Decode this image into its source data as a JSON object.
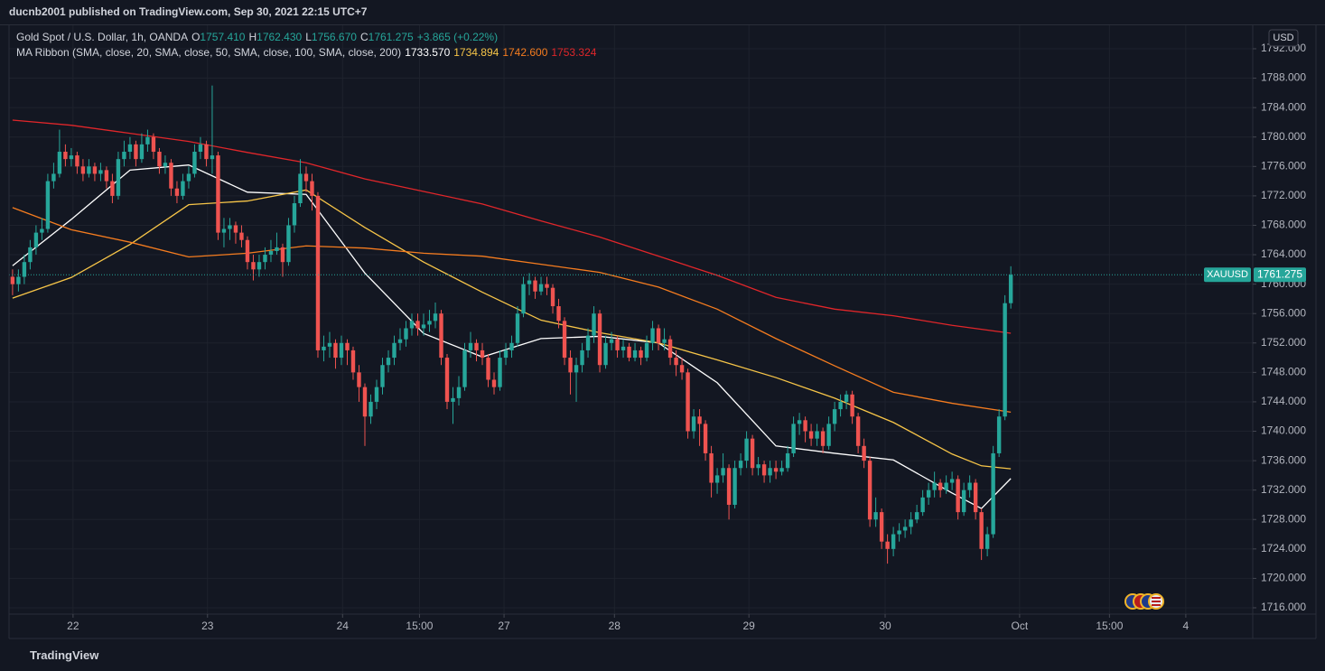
{
  "header": "ducnb2001 published on TradingView.com, Sep 30, 2021 22:15 UTC+7",
  "footer": "TradingView",
  "chart_data": {
    "type": "candlestick",
    "symbol_title": "Gold Spot / U.S. Dollar, 1h, OANDA",
    "ohlc_legend": [
      {
        "label": "O",
        "value": "1757.410"
      },
      {
        "label": "H",
        "value": "1762.430"
      },
      {
        "label": "L",
        "value": "1756.670"
      },
      {
        "label": "C",
        "value": "1761.275"
      }
    ],
    "change": "+3.865 (+0.22%)",
    "indicator_title": "MA Ribbon (SMA, close, 20, SMA, close, 50, SMA, close, 100, SMA, close, 200)",
    "currency": "USD",
    "price_tag": {
      "name": "XAUUSD",
      "value": 1761.275,
      "label": "1761.275"
    },
    "up_color": "#26a69a",
    "down_color": "#ef5350",
    "grid": true,
    "xlim": [
      -0.6,
      211.2
    ],
    "ylim": [
      1715.14,
      1795.19
    ],
    "xticks": [
      {
        "value": 10.3,
        "label": "22"
      },
      {
        "value": 33.2,
        "label": "23"
      },
      {
        "value": 56.2,
        "label": "24"
      },
      {
        "value": 69.3,
        "label": "15:00"
      },
      {
        "value": 83.7,
        "label": "27"
      },
      {
        "value": 102.5,
        "label": "28"
      },
      {
        "value": 125.4,
        "label": "29"
      },
      {
        "value": 148.6,
        "label": "30"
      },
      {
        "value": 171.5,
        "label": "Oct"
      },
      {
        "value": 186.8,
        "label": "15:00"
      },
      {
        "value": 199.8,
        "label": "4"
      }
    ],
    "yticks": [
      {
        "value": 1716,
        "label": "1716.000"
      },
      {
        "value": 1720,
        "label": "1720.000"
      },
      {
        "value": 1724,
        "label": "1724.000"
      },
      {
        "value": 1728,
        "label": "1728.000"
      },
      {
        "value": 1732,
        "label": "1732.000"
      },
      {
        "value": 1736,
        "label": "1736.000"
      },
      {
        "value": 1740,
        "label": "1740.000"
      },
      {
        "value": 1744,
        "label": "1744.000"
      },
      {
        "value": 1748,
        "label": "1748.000"
      },
      {
        "value": 1752,
        "label": "1752.000"
      },
      {
        "value": 1756,
        "label": "1756.000"
      },
      {
        "value": 1760,
        "label": "1760.000"
      },
      {
        "value": 1764,
        "label": "1764.000"
      },
      {
        "value": 1768,
        "label": "1768.000"
      },
      {
        "value": 1772,
        "label": "1772.000"
      },
      {
        "value": 1776,
        "label": "1776.000"
      },
      {
        "value": 1780,
        "label": "1780.000"
      },
      {
        "value": 1784,
        "label": "1784.000"
      },
      {
        "value": 1788,
        "label": "1788.000"
      },
      {
        "value": 1792,
        "label": "1792.000"
      }
    ],
    "candles": [
      [
        1761,
        1762,
        1758.5,
        1760
      ],
      [
        1760,
        1762,
        1759,
        1761
      ],
      [
        1761,
        1764,
        1760,
        1763
      ],
      [
        1763,
        1766,
        1762,
        1765
      ],
      [
        1765,
        1768,
        1764,
        1767
      ],
      [
        1767,
        1769,
        1766,
        1767.5
      ],
      [
        1767.5,
        1775,
        1767,
        1774
      ],
      [
        1774,
        1776.5,
        1773,
        1775
      ],
      [
        1775,
        1781,
        1774.5,
        1778
      ],
      [
        1778,
        1779,
        1776,
        1777
      ],
      [
        1777,
        1778.5,
        1776,
        1777.5
      ],
      [
        1777.5,
        1778,
        1775,
        1776
      ],
      [
        1776,
        1777,
        1774,
        1775
      ],
      [
        1775,
        1777,
        1774.5,
        1776
      ],
      [
        1776,
        1776.5,
        1774,
        1775
      ],
      [
        1775,
        1776.5,
        1774,
        1775.5
      ],
      [
        1775.5,
        1776,
        1773,
        1774
      ],
      [
        1774,
        1775,
        1771,
        1772
      ],
      [
        1772,
        1778,
        1771.5,
        1777
      ],
      [
        1777,
        1779.5,
        1776,
        1778
      ],
      [
        1778,
        1780,
        1777,
        1779
      ],
      [
        1779,
        1779.5,
        1776,
        1777
      ],
      [
        1777,
        1780.5,
        1776.5,
        1779
      ],
      [
        1779,
        1781,
        1778,
        1780
      ],
      [
        1780,
        1780.5,
        1777,
        1778
      ],
      [
        1778,
        1778.5,
        1775,
        1776
      ],
      [
        1776,
        1777.5,
        1775,
        1776.5
      ],
      [
        1776.5,
        1777,
        1772,
        1773
      ],
      [
        1773,
        1774,
        1771,
        1772
      ],
      [
        1772,
        1775,
        1771.5,
        1774
      ],
      [
        1774,
        1776,
        1773,
        1775
      ],
      [
        1775,
        1779,
        1774.5,
        1778
      ],
      [
        1778,
        1780,
        1777,
        1779
      ],
      [
        1779,
        1779.5,
        1776,
        1777
      ],
      [
        1777,
        1787,
        1775,
        1777.5
      ],
      [
        1777.5,
        1778,
        1766,
        1767
      ],
      [
        1767,
        1769,
        1765,
        1767.5
      ],
      [
        1767.5,
        1769,
        1766,
        1768
      ],
      [
        1768,
        1768.5,
        1765.5,
        1767
      ],
      [
        1767,
        1768,
        1765,
        1766
      ],
      [
        1766,
        1766.5,
        1762,
        1763
      ],
      [
        1763,
        1764,
        1760.5,
        1762
      ],
      [
        1762,
        1764,
        1761,
        1763
      ],
      [
        1763,
        1765,
        1762,
        1764
      ],
      [
        1764,
        1766,
        1763,
        1764.5
      ],
      [
        1764.5,
        1767,
        1764,
        1765
      ],
      [
        1765,
        1765.5,
        1761,
        1763
      ],
      [
        1763,
        1769,
        1762.5,
        1768
      ],
      [
        1768,
        1772,
        1767,
        1771
      ],
      [
        1771,
        1777,
        1770.5,
        1775
      ],
      [
        1775,
        1776,
        1772.5,
        1774
      ],
      [
        1774,
        1775,
        1770,
        1772
      ],
      [
        1772,
        1772.5,
        1750,
        1751
      ],
      [
        1751,
        1753,
        1749.5,
        1751.5
      ],
      [
        1751.5,
        1753.5,
        1750,
        1752
      ],
      [
        1752,
        1752.5,
        1748.5,
        1750
      ],
      [
        1750,
        1753,
        1749,
        1752
      ],
      [
        1752,
        1752.5,
        1749,
        1751
      ],
      [
        1751,
        1751.5,
        1747,
        1748
      ],
      [
        1748,
        1749,
        1744,
        1746
      ],
      [
        1746,
        1746.5,
        1738,
        1742
      ],
      [
        1742,
        1745,
        1741,
        1744
      ],
      [
        1744,
        1747,
        1743,
        1746
      ],
      [
        1746,
        1750,
        1745,
        1749
      ],
      [
        1749,
        1751,
        1748,
        1750
      ],
      [
        1750,
        1753,
        1749,
        1752
      ],
      [
        1752,
        1754,
        1751,
        1752.5
      ],
      [
        1752.5,
        1755,
        1751.5,
        1754
      ],
      [
        1754,
        1756,
        1753,
        1755
      ],
      [
        1755,
        1756,
        1753,
        1754
      ],
      [
        1754,
        1756,
        1753,
        1754.5
      ],
      [
        1754.5,
        1756.5,
        1753.5,
        1755
      ],
      [
        1755,
        1757.5,
        1754,
        1756
      ],
      [
        1756,
        1756.5,
        1749,
        1750
      ],
      [
        1750,
        1750.5,
        1743,
        1744
      ],
      [
        1744,
        1746,
        1741,
        1744.5
      ],
      [
        1744.5,
        1747.5,
        1743.5,
        1746
      ],
      [
        1746,
        1752,
        1745.5,
        1751
      ],
      [
        1751,
        1753.5,
        1750,
        1752
      ],
      [
        1752,
        1752.5,
        1749.5,
        1751
      ],
      [
        1751,
        1752,
        1749,
        1750
      ],
      [
        1750,
        1750.5,
        1746,
        1747
      ],
      [
        1747,
        1748,
        1745,
        1746
      ],
      [
        1746,
        1751,
        1745.5,
        1750
      ],
      [
        1750,
        1752,
        1749,
        1751
      ],
      [
        1751,
        1753,
        1750,
        1752
      ],
      [
        1752,
        1757,
        1751.5,
        1756
      ],
      [
        1756,
        1761,
        1755.5,
        1760
      ],
      [
        1760,
        1761.5,
        1758.5,
        1760.5
      ],
      [
        1760.5,
        1761,
        1758,
        1759
      ],
      [
        1759,
        1761,
        1758.5,
        1760
      ],
      [
        1760,
        1761,
        1758.5,
        1759.5
      ],
      [
        1759.5,
        1760,
        1756,
        1757
      ],
      [
        1757,
        1758,
        1754,
        1755
      ],
      [
        1755,
        1755.5,
        1749,
        1750
      ],
      [
        1750,
        1751,
        1745,
        1748
      ],
      [
        1748,
        1750,
        1744,
        1749
      ],
      [
        1749,
        1752,
        1748,
        1751
      ],
      [
        1751,
        1754,
        1750,
        1753
      ],
      [
        1753,
        1757,
        1752,
        1756
      ],
      [
        1756,
        1756.5,
        1748,
        1749
      ],
      [
        1749,
        1753,
        1748.5,
        1752
      ],
      [
        1752,
        1753.5,
        1751,
        1752.5
      ],
      [
        1752.5,
        1753,
        1750,
        1751
      ],
      [
        1751,
        1752.5,
        1750,
        1751.5
      ],
      [
        1751.5,
        1752,
        1749.5,
        1750
      ],
      [
        1750,
        1752,
        1749.5,
        1751
      ],
      [
        1751,
        1751.5,
        1749,
        1750
      ],
      [
        1750,
        1753,
        1749.5,
        1752
      ],
      [
        1752,
        1755,
        1751,
        1754
      ],
      [
        1754,
        1754.5,
        1751,
        1752
      ],
      [
        1752,
        1754,
        1751,
        1752.5
      ],
      [
        1752.5,
        1753,
        1749,
        1750
      ],
      [
        1750,
        1751,
        1747.5,
        1749
      ],
      [
        1749,
        1750,
        1747,
        1748
      ],
      [
        1748,
        1748.5,
        1739,
        1740
      ],
      [
        1740,
        1743,
        1739,
        1742
      ],
      [
        1742,
        1743,
        1738,
        1741
      ],
      [
        1741,
        1741.5,
        1736,
        1737
      ],
      [
        1737,
        1738,
        1731,
        1733
      ],
      [
        1733,
        1735,
        1731.5,
        1734
      ],
      [
        1734,
        1737,
        1733,
        1735
      ],
      [
        1735,
        1735.5,
        1728,
        1730
      ],
      [
        1730,
        1736,
        1729.5,
        1735
      ],
      [
        1735,
        1737,
        1734,
        1736
      ],
      [
        1736,
        1740,
        1735,
        1739
      ],
      [
        1739,
        1739.5,
        1734,
        1735
      ],
      [
        1735,
        1736.5,
        1734,
        1735.5
      ],
      [
        1735.5,
        1736,
        1733,
        1734
      ],
      [
        1734,
        1736,
        1733,
        1735
      ],
      [
        1735,
        1736,
        1733.5,
        1734.5
      ],
      [
        1734.5,
        1736,
        1734,
        1735
      ],
      [
        1735,
        1738,
        1734.5,
        1737
      ],
      [
        1737,
        1742,
        1736.5,
        1741
      ],
      [
        1741,
        1742.5,
        1739.5,
        1741.5
      ],
      [
        1741.5,
        1742,
        1738.5,
        1740
      ],
      [
        1740,
        1741,
        1738,
        1739
      ],
      [
        1739,
        1741,
        1738,
        1740
      ],
      [
        1740,
        1740.5,
        1737,
        1738
      ],
      [
        1738,
        1742,
        1737.5,
        1741
      ],
      [
        1741,
        1744,
        1740,
        1743
      ],
      [
        1743,
        1745,
        1742,
        1744
      ],
      [
        1744,
        1745.5,
        1743,
        1745
      ],
      [
        1745,
        1745.5,
        1741,
        1742
      ],
      [
        1742,
        1742.5,
        1737,
        1738
      ],
      [
        1738,
        1739,
        1735,
        1736
      ],
      [
        1736,
        1736.5,
        1727,
        1728
      ],
      [
        1728,
        1731,
        1727,
        1729
      ],
      [
        1729,
        1729.5,
        1724,
        1725
      ],
      [
        1725,
        1726,
        1722,
        1724
      ],
      [
        1724,
        1727,
        1723,
        1726
      ],
      [
        1726,
        1727.5,
        1725,
        1726.5
      ],
      [
        1726.5,
        1728,
        1725.5,
        1727
      ],
      [
        1727,
        1729,
        1726,
        1728
      ],
      [
        1728,
        1730,
        1727.5,
        1729
      ],
      [
        1729,
        1732,
        1728.5,
        1731
      ],
      [
        1731,
        1733,
        1730,
        1732
      ],
      [
        1732,
        1734.5,
        1731,
        1733
      ],
      [
        1733,
        1733.5,
        1731,
        1732
      ],
      [
        1732,
        1734,
        1731.5,
        1733
      ],
      [
        1733,
        1734.5,
        1732,
        1733.5
      ],
      [
        1733.5,
        1734,
        1728,
        1729
      ],
      [
        1729,
        1733,
        1728.5,
        1732
      ],
      [
        1732,
        1734,
        1731,
        1733
      ],
      [
        1733,
        1733.5,
        1728,
        1729
      ],
      [
        1729,
        1729.5,
        1722.5,
        1724
      ],
      [
        1724,
        1727,
        1723,
        1726
      ],
      [
        1726,
        1738,
        1725.5,
        1737
      ],
      [
        1737,
        1743,
        1736.5,
        1742
      ],
      [
        1742,
        1758.5,
        1741.5,
        1757.41
      ],
      [
        1757.41,
        1762.43,
        1756.67,
        1761.275
      ]
    ],
    "series": [
      {
        "color": "#ffffff",
        "value_label": "1733.570",
        "x": [
          0,
          10,
          20,
          30,
          40,
          50,
          60,
          70,
          80,
          90,
          100,
          110,
          120,
          130,
          140,
          150,
          160,
          165,
          170
        ],
        "values": [
          1762.5,
          1768.8,
          1775.5,
          1776.2,
          1772.5,
          1772.2,
          1761.5,
          1753.3,
          1750.1,
          1752.6,
          1752.9,
          1752.0,
          1746.6,
          1738.0,
          1737.0,
          1736.1,
          1731.6,
          1729.5,
          1733.57
        ]
      },
      {
        "color": "#f7c548",
        "value_label": "1734.894",
        "x": [
          0,
          10,
          20,
          30,
          40,
          50,
          60,
          70,
          80,
          90,
          100,
          110,
          120,
          130,
          140,
          150,
          160,
          165,
          170
        ],
        "values": [
          1758.1,
          1760.9,
          1765.4,
          1770.8,
          1771.3,
          1772.8,
          1767.7,
          1763.0,
          1758.9,
          1755.1,
          1753.4,
          1752.0,
          1749.7,
          1747.3,
          1744.5,
          1741.2,
          1736.9,
          1735.3,
          1734.894
        ]
      },
      {
        "color": "#f57c1f",
        "value_label": "1742.600",
        "x": [
          0,
          10,
          20,
          30,
          40,
          50,
          60,
          70,
          80,
          90,
          100,
          110,
          120,
          130,
          140,
          150,
          160,
          170
        ],
        "values": [
          1770.4,
          1767.4,
          1765.7,
          1763.7,
          1764.2,
          1765.2,
          1764.9,
          1764.2,
          1763.8,
          1762.7,
          1761.6,
          1759.6,
          1756.6,
          1752.6,
          1748.9,
          1745.3,
          1743.8,
          1742.6
        ]
      },
      {
        "color": "#e0262a",
        "value_label": "1753.324",
        "x": [
          0,
          10,
          20,
          30,
          40,
          50,
          60,
          70,
          80,
          90,
          100,
          110,
          120,
          130,
          140,
          150,
          160,
          170
        ],
        "values": [
          1782.3,
          1781.6,
          1780.5,
          1779.4,
          1777.9,
          1776.5,
          1774.3,
          1772.6,
          1770.9,
          1768.6,
          1766.4,
          1763.8,
          1761.2,
          1758.2,
          1756.6,
          1755.7,
          1754.4,
          1753.324
        ]
      }
    ]
  }
}
